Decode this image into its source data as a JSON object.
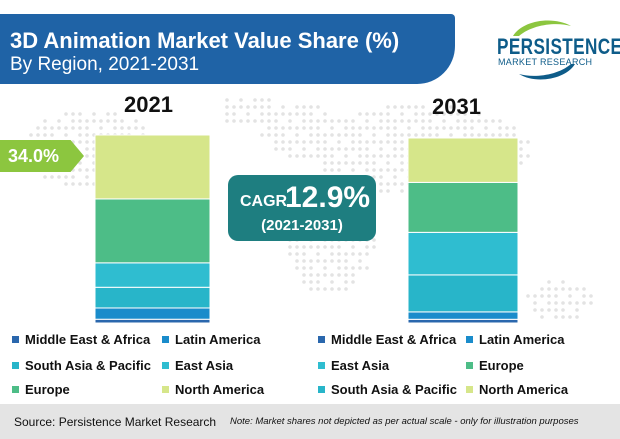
{
  "title": "3D Animation Market Value Share (%)",
  "subtitle": "By Region, 2021-2031",
  "logo": {
    "name": "PERSISTENCE",
    "tagline": "MARKET RESEARCH"
  },
  "callout": "34.0%",
  "cagr": {
    "label": "CAGR",
    "value": "12.9%",
    "period": "(2021-2031)"
  },
  "source": "Source: Persistence Market Research",
  "note": "Note: Market shares not depicted as per actual scale - only for illustration purposes",
  "colors": {
    "Middle East & Africa": "#2a67ad",
    "Latin America": "#1a8ccb",
    "South Asia & Pacific": "#28b5c9",
    "East Asia": "#2fbdd0",
    "Europe": "#4dbd87",
    "North America": "#d6e68a",
    "header": "#1f63a6",
    "cagr_box": "#1e7e80",
    "callout": "#8cc63f"
  },
  "chart_data": [
    {
      "type": "bar",
      "stacked": true,
      "year": "2021",
      "series": [
        {
          "name": "Middle East & Africa",
          "value": 2.0
        },
        {
          "name": "Latin America",
          "value": 6.0
        },
        {
          "name": "South Asia & Pacific",
          "value": 11.0
        },
        {
          "name": "East Asia",
          "value": 13.0
        },
        {
          "name": "Europe",
          "value": 34.0
        },
        {
          "name": "North America",
          "value": 34.0
        }
      ]
    },
    {
      "type": "bar",
      "stacked": true,
      "year": "2031",
      "series": [
        {
          "name": "Middle East & Africa",
          "value": 2.0
        },
        {
          "name": "Latin America",
          "value": 4.0
        },
        {
          "name": "South Asia & Pacific",
          "value": 20.0
        },
        {
          "name": "East Asia",
          "value": 23.0
        },
        {
          "name": "Europe",
          "value": 27.0
        },
        {
          "name": "North America",
          "value": 24.0
        }
      ]
    }
  ],
  "legend_left": [
    {
      "label": "Middle East & Africa",
      "series": "Middle East & Africa"
    },
    {
      "label": "Latin America",
      "series": "Latin America"
    },
    {
      "label": "South Asia & Pacific",
      "series": "South Asia & Pacific"
    },
    {
      "label": "East Asia",
      "series": "East Asia"
    },
    {
      "label": "Europe",
      "series": "Europe"
    },
    {
      "label": "North America",
      "series": "North America"
    }
  ],
  "legend_right": [
    {
      "label": "Middle East & Africa",
      "series": "Middle East & Africa"
    },
    {
      "label": "Latin America",
      "series": "Latin America"
    },
    {
      "label": "East Asia",
      "series": "East Asia"
    },
    {
      "label": "Europe",
      "series": "Europe"
    },
    {
      "label": "South Asia & Pacific",
      "series": "South Asia & Pacific"
    },
    {
      "label": "North America",
      "series": "North America"
    }
  ]
}
